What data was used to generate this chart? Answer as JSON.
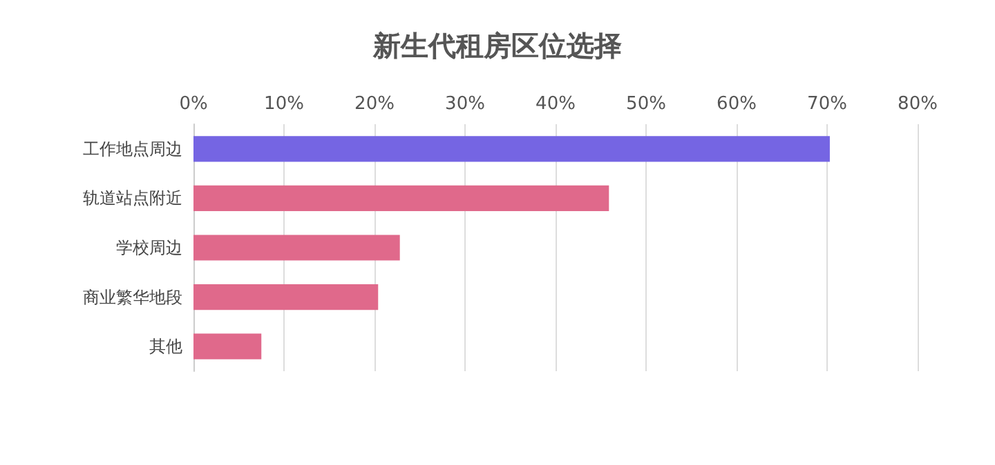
{
  "chart_data": {
    "type": "bar",
    "orientation": "horizontal",
    "title": "新生代租房区位选择",
    "categories": [
      "工作地点周边",
      "轨道站点附近",
      "学校周边",
      "商业繁华地段",
      "其他"
    ],
    "values": [
      70.3,
      45.9,
      22.8,
      20.4,
      7.5
    ],
    "colors": [
      "#7565e3",
      "#e0698b",
      "#e0698b",
      "#e0698b",
      "#e0698b"
    ],
    "xlim": [
      0,
      80
    ],
    "xticks": [
      {
        "value": 0,
        "label": "0%"
      },
      {
        "value": 10,
        "label": "10%"
      },
      {
        "value": 20,
        "label": "20%"
      },
      {
        "value": 30,
        "label": "30%"
      },
      {
        "value": 40,
        "label": "40%"
      },
      {
        "value": 50,
        "label": "50%"
      },
      {
        "value": 60,
        "label": "60%"
      },
      {
        "value": 70,
        "label": "70%"
      },
      {
        "value": 80,
        "label": "80%"
      }
    ],
    "grid": "x"
  }
}
